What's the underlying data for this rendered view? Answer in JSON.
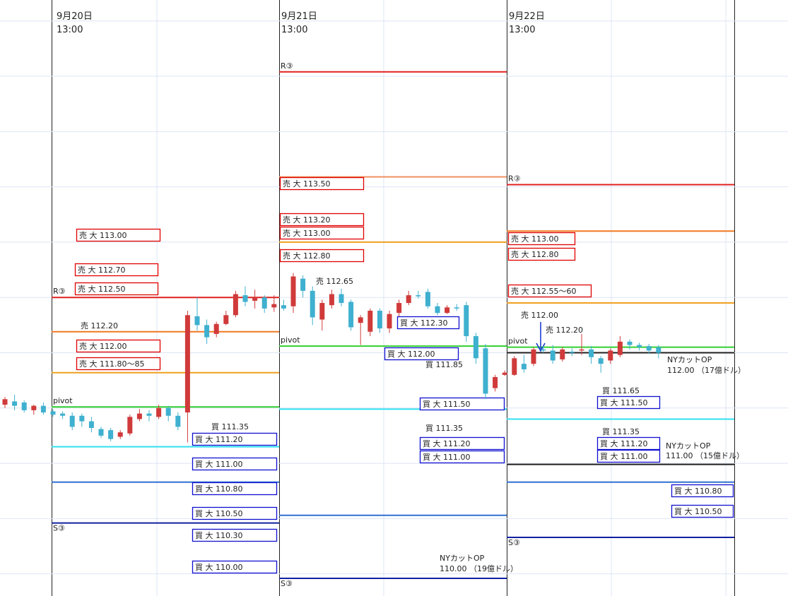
{
  "chart_data": {
    "type": "candlestick",
    "ylim": [
      109.8,
      115.19
    ],
    "yticks": [
      110,
      110.5,
      111,
      111.5,
      112,
      112.5,
      113,
      113.5,
      114,
      114.5,
      115
    ],
    "grid": true,
    "up_color": "#d03a3a",
    "down_color": "#3fb0cf",
    "open": [
      111.53,
      111.56,
      111.55,
      111.48,
      111.52,
      111.47,
      111.45,
      111.43,
      111.43,
      111.38,
      111.31,
      111.3,
      111.24,
      111.27,
      111.4,
      111.45,
      111.42,
      111.5,
      111.43,
      111.46,
      112.33,
      112.25,
      112.17,
      112.26,
      112.34,
      112.52,
      112.47,
      112.5,
      112.41,
      112.43,
      112.42,
      112.67,
      112.56,
      112.3,
      112.43,
      112.53,
      112.46,
      112.27,
      112.19,
      112.38,
      112.22,
      112.36,
      112.45,
      112.52,
      112.55,
      112.42,
      112.36,
      112.41,
      112.43,
      112.15,
      112.04,
      111.68,
      111.8,
      111.8,
      111.9,
      111.9,
      112.03,
      112.02,
      111.94,
      112.01,
      112.02,
      112.03,
      111.95,
      111.93,
      111.98,
      112.1,
      112.07,
      112.06,
      112.05
    ],
    "high": [
      111.6,
      111.62,
      111.57,
      111.53,
      111.55,
      111.49,
      111.47,
      111.46,
      111.45,
      111.42,
      111.33,
      111.32,
      111.3,
      111.44,
      111.49,
      111.48,
      111.53,
      111.52,
      111.46,
      112.38,
      112.5,
      112.3,
      112.28,
      112.38,
      112.56,
      112.6,
      112.57,
      112.52,
      112.52,
      112.48,
      112.72,
      112.7,
      112.6,
      112.48,
      112.57,
      112.58,
      112.48,
      112.34,
      112.4,
      112.4,
      112.38,
      112.48,
      112.56,
      112.56,
      112.58,
      112.45,
      112.43,
      112.44,
      112.46,
      112.18,
      112.08,
      111.8,
      111.84,
      111.97,
      111.98,
      112.05,
      112.06,
      112.07,
      112.05,
      112.04,
      112.17,
      112.06,
      111.97,
      112.04,
      112.15,
      112.12,
      112.09,
      112.08,
      112.07
    ],
    "low": [
      111.5,
      111.48,
      111.46,
      111.44,
      111.44,
      111.42,
      111.4,
      111.3,
      111.33,
      111.28,
      111.23,
      111.2,
      111.22,
      111.25,
      111.38,
      111.38,
      111.4,
      111.38,
      111.3,
      111.19,
      112.2,
      112.08,
      112.14,
      112.25,
      112.32,
      112.42,
      112.4,
      112.36,
      112.37,
      112.38,
      112.36,
      112.5,
      112.25,
      112.2,
      112.4,
      112.42,
      112.2,
      112.07,
      112.15,
      112.18,
      112.18,
      112.33,
      112.43,
      112.49,
      112.4,
      112.34,
      112.35,
      112.38,
      112.1,
      111.9,
      111.58,
      111.65,
      111.79,
      111.79,
      111.82,
      111.88,
      112,
      111.9,
      111.92,
      111.97,
      111.98,
      111.9,
      111.82,
      111.9,
      111.96,
      112.03,
      112.02,
      111.99,
      111.95
    ],
    "close": [
      111.58,
      111.52,
      111.48,
      111.52,
      111.46,
      111.44,
      111.43,
      111.33,
      111.38,
      111.32,
      111.25,
      111.22,
      111.28,
      111.42,
      111.45,
      111.43,
      111.5,
      111.43,
      111.33,
      112.34,
      112.25,
      112.14,
      112.26,
      112.34,
      112.53,
      112.46,
      112.5,
      112.4,
      112.44,
      112.4,
      112.69,
      112.56,
      112.32,
      112.45,
      112.53,
      112.45,
      112.23,
      112.32,
      112.38,
      112.22,
      112.35,
      112.45,
      112.52,
      112.52,
      112.42,
      112.36,
      112.41,
      112.4,
      112.15,
      111.95,
      111.63,
      111.78,
      111.82,
      111.95,
      111.85,
      112.03,
      112.02,
      111.93,
      112.03,
      112,
      112.03,
      111.96,
      111.9,
      112.02,
      112.1,
      112.07,
      112.05,
      112.02,
      112
    ],
    "days": [
      {
        "date": "9月20日",
        "time": "13:00",
        "levels": [
          {
            "value": 112.5,
            "color": "#e02020",
            "label": "R③"
          },
          {
            "value": 112.19,
            "color": "#f07820"
          },
          {
            "value": 111.82,
            "color": "#f0a020"
          },
          {
            "value": 111.51,
            "color": "#30d030",
            "label": "pivot"
          },
          {
            "value": 111.15,
            "color": "#30e0f0"
          },
          {
            "value": 110.83,
            "color": "#3070d0"
          },
          {
            "value": 110.46,
            "color": "#1020a0",
            "label": "S③"
          }
        ],
        "annotations": [
          {
            "text": "売 大 113.00",
            "color": "#e00000"
          },
          {
            "text": "売 大 112.70",
            "color": "#e00000"
          },
          {
            "text": "売 大 112.50",
            "color": "#e00000"
          },
          {
            "text": "売 112.20"
          },
          {
            "text": "売 大 112.00",
            "color": "#e00000"
          },
          {
            "text": "売 大 111.80～85",
            "color": "#e00000"
          },
          {
            "text": "買 111.35"
          },
          {
            "text": "買 大 111.20",
            "color": "#1010d0"
          },
          {
            "text": "買 大 111.00",
            "color": "#1010d0"
          },
          {
            "text": "買 大 110.80",
            "color": "#1010d0"
          },
          {
            "text": "買 大 110.50",
            "color": "#1010d0"
          },
          {
            "text": "買 大 110.30",
            "color": "#1010d0"
          },
          {
            "text": "買 大 110.00",
            "color": "#1010d0"
          }
        ]
      },
      {
        "date": "9月21日",
        "time": "13:00",
        "levels": [
          {
            "value": 114.54,
            "color": "#e02020",
            "label": "R③"
          },
          {
            "value": 113.59,
            "color": "#f09060"
          },
          {
            "value": 113.0,
            "color": "#f0a020"
          },
          {
            "value": 112.06,
            "color": "#30d030",
            "label": "pivot"
          },
          {
            "value": 111.49,
            "color": "#30e0f0"
          },
          {
            "value": 110.53,
            "color": "#3070d0"
          },
          {
            "value": 109.96,
            "color": "#1020a0",
            "label": "S③"
          }
        ],
        "annotations": [
          {
            "text": "売 大 113.50",
            "color": "#e00000"
          },
          {
            "text": "売 大 113.20",
            "color": "#e00000"
          },
          {
            "text": "売 大 113.00",
            "color": "#e00000"
          },
          {
            "text": "売 大 112.80",
            "color": "#e00000"
          },
          {
            "text": "売 112.65"
          },
          {
            "text": "買 大 112.30",
            "color": "#1010d0"
          },
          {
            "text": "買 大 112.00",
            "color": "#1010d0"
          },
          {
            "text": "買 111.85"
          },
          {
            "text": "買 大 111.50",
            "color": "#1010d0"
          },
          {
            "text": "買 111.35"
          },
          {
            "text": "買 大 111.20",
            "color": "#1010d0"
          },
          {
            "text": "買 大 111.00",
            "color": "#1010d0"
          },
          {
            "text": "NYカットOP"
          },
          {
            "text": "110.00 （19億ドル）"
          }
        ]
      },
      {
        "date": "9月22日",
        "time": "13:00",
        "levels": [
          {
            "value": 113.52,
            "color": "#e02020",
            "label": "R③"
          },
          {
            "value": 113.1,
            "color": "#f07820"
          },
          {
            "value": 112.45,
            "color": "#f0a020"
          },
          {
            "value": 112.05,
            "color": "#30d030",
            "label": "pivot"
          },
          {
            "value": 112.0,
            "color": "#202020"
          },
          {
            "value": 111.4,
            "color": "#30e0f0"
          },
          {
            "value": 110.99,
            "color": "#202020"
          },
          {
            "value": 110.83,
            "color": "#3070d0"
          },
          {
            "value": 110.33,
            "color": "#1020a0",
            "label": "S③"
          }
        ],
        "annotations": [
          {
            "text": "売 大 113.00",
            "color": "#e00000"
          },
          {
            "text": "売 大 112.80",
            "color": "#e00000"
          },
          {
            "text": "売 大 112.55～60",
            "color": "#e00000"
          },
          {
            "text": "売 112.00"
          },
          {
            "text": "売 112.20"
          },
          {
            "text": "NYカットOP"
          },
          {
            "text": "112.00 （17億ドル）"
          },
          {
            "text": "買 111.65"
          },
          {
            "text": "買 大 111.50",
            "color": "#1010d0"
          },
          {
            "text": "買 111.35"
          },
          {
            "text": "買 大 111.20",
            "color": "#1010d0"
          },
          {
            "text": "買 大 111.00",
            "color": "#1010d0"
          },
          {
            "text": "NYカットOP"
          },
          {
            "text": "111.00 （15億ドル）"
          },
          {
            "text": "買 大 110.80",
            "color": "#1010d0"
          },
          {
            "text": "買 大 110.50",
            "color": "#1010d0"
          }
        ]
      }
    ]
  }
}
